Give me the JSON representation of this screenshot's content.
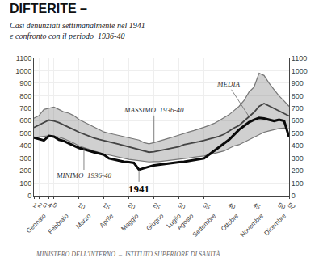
{
  "chart_data": {
    "type": "line",
    "title": "DIFTERITE –",
    "subtitle": [
      "Casi denunziati settimanalmente nel 1941",
      "e confronto con il periodo  1936-40"
    ],
    "annotations": [
      "MINISTERO DELL'INTERNO  –  ISTITUTO SUPERIORE DI SANITÀ"
    ],
    "x": [
      1,
      2,
      3,
      4,
      5,
      6,
      7,
      8,
      9,
      10,
      11,
      12,
      13,
      14,
      15,
      16,
      17,
      18,
      19,
      20,
      21,
      22,
      23,
      24,
      25,
      26,
      27,
      28,
      29,
      30,
      31,
      32,
      33,
      34,
      35,
      36,
      37,
      38,
      39,
      40,
      41,
      42,
      43,
      44,
      45,
      46,
      47,
      48,
      49,
      50,
      51,
      52
    ],
    "series": [
      {
        "name": "MINIMO  1936-40",
        "color": "#777777",
        "type": "line",
        "values": [
          465,
          470,
          475,
          480,
          475,
          468,
          455,
          440,
          420,
          398,
          385,
          368,
          355,
          345,
          335,
          325,
          318,
          308,
          298,
          290,
          285,
          280,
          275,
          270,
          272,
          272,
          278,
          282,
          288,
          292,
          298,
          302,
          308,
          313,
          318,
          328,
          338,
          348,
          358,
          378,
          398,
          408,
          428,
          448,
          468,
          488,
          508,
          518,
          528,
          538,
          542,
          535
        ]
      },
      {
        "name": "MASSIMO  1936-40",
        "color": "#777777",
        "type": "area",
        "values": [
          620,
          640,
          690,
          700,
          710,
          690,
          670,
          660,
          640,
          610,
          590,
          565,
          545,
          525,
          510,
          500,
          490,
          480,
          470,
          460,
          450,
          445,
          425,
          415,
          425,
          435,
          450,
          460,
          472,
          483,
          498,
          510,
          522,
          533,
          548,
          562,
          578,
          600,
          622,
          648,
          682,
          715,
          762,
          830,
          870,
          980,
          962,
          900,
          848,
          798,
          758,
          715
        ]
      },
      {
        "name": "MEDIA",
        "color": "#444444",
        "type": "line",
        "values": [
          545,
          565,
          585,
          605,
          598,
          585,
          565,
          548,
          528,
          508,
          492,
          478,
          462,
          450,
          442,
          432,
          422,
          412,
          402,
          392,
          382,
          372,
          358,
          348,
          352,
          360,
          368,
          376,
          382,
          392,
          408,
          415,
          422,
          432,
          442,
          452,
          462,
          475,
          492,
          518,
          542,
          562,
          598,
          632,
          668,
          715,
          738,
          718,
          698,
          678,
          662,
          638
        ]
      },
      {
        "name": "1941",
        "color": "#0a0a0a",
        "type": "line",
        "values": [
          465,
          452,
          442,
          478,
          472,
          448,
          438,
          418,
          398,
          382,
          372,
          358,
          348,
          338,
          328,
          298,
          288,
          278,
          272,
          268,
          262,
          208,
          222,
          232,
          242,
          248,
          252,
          258,
          262,
          268,
          272,
          278,
          282,
          292,
          298,
          328,
          358,
          388,
          418,
          448,
          488,
          528,
          558,
          588,
          608,
          622,
          618,
          608,
          598,
          608,
          598,
          468
        ]
      }
    ],
    "xlim": [
      1,
      52
    ],
    "xticks": [
      1,
      2,
      3,
      4,
      5,
      10,
      15,
      20,
      25,
      30,
      35,
      40,
      45,
      50,
      52
    ],
    "x2lim": [
      1,
      52
    ],
    "x2ticks": [
      {
        "value": 3.0,
        "label": "Gennaio"
      },
      {
        "value": 7.5,
        "label": "Febbraio"
      },
      {
        "value": 12.0,
        "label": "Marzo"
      },
      {
        "value": 16.5,
        "label": "Aprile"
      },
      {
        "value": 21.5,
        "label": "Maggio"
      },
      {
        "value": 26.5,
        "label": "Giugno"
      },
      {
        "value": 30.0,
        "label": "Luglio"
      },
      {
        "value": 32.5,
        "label": "Agosto"
      },
      {
        "value": 37.0,
        "label": "Settembre"
      },
      {
        "value": 41.5,
        "label": "Ottobre"
      },
      {
        "value": 46.5,
        "label": "Novembre"
      },
      {
        "value": 51.0,
        "label": "Dicembre"
      }
    ],
    "ylim": [
      0,
      1100
    ],
    "yticks": [
      0,
      100,
      200,
      300,
      400,
      500,
      600,
      700,
      800,
      900,
      1000,
      1100
    ],
    "y2lim": [
      0,
      1100
    ],
    "y2ticks": [
      0,
      100,
      200,
      300,
      400,
      500,
      600,
      700,
      800,
      900,
      1000,
      1100
    ],
    "grid": true
  }
}
